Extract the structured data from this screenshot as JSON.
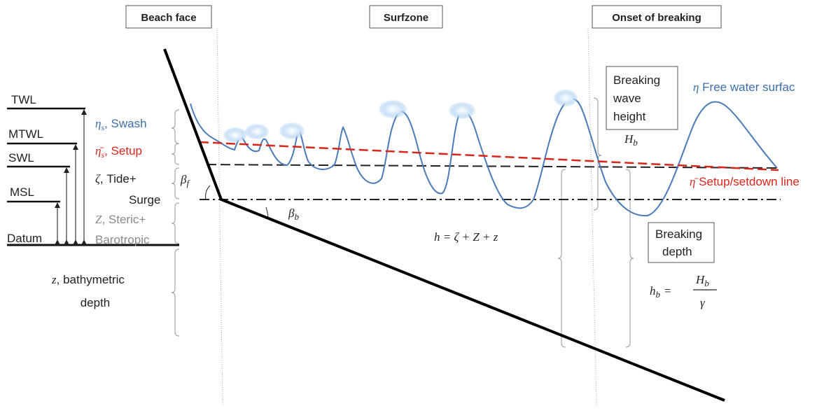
{
  "zones": [
    "Beach face",
    "Surfzone",
    "Onset of breaking"
  ],
  "levels": [
    "TWL",
    "MTWL",
    "SWL",
    "MSL",
    "Datum"
  ],
  "components": {
    "swash": {
      "symbol": "η",
      "sub": "s",
      "text": ", Swash"
    },
    "setup": {
      "symbol": "η̄",
      "sub": "s",
      "text": ",  Setup"
    },
    "tide": {
      "symbol": "ζ",
      "text": ",   Tide+",
      "line2": "Surge"
    },
    "steric": {
      "symbol": "Z",
      "text": ", Steric+",
      "line2": "Barotropic"
    },
    "bathymetry": {
      "symbol": "z",
      "text": ", bathymetric",
      "line2": "depth"
    }
  },
  "angles": {
    "beach_face": {
      "symbol": "β",
      "sub": "f"
    },
    "bed": {
      "symbol": "β",
      "sub": "b"
    }
  },
  "breaking_wave_height": [
    "Breaking",
    "wave",
    "height"
  ],
  "breaking_height_symbol": {
    "symbol": "H",
    "sub": "b"
  },
  "free_surface": {
    "symbol": "η",
    "text": " Free water surfac"
  },
  "setup_line": {
    "symbol": "η̄",
    "text": " Setup/setdown line"
  },
  "breaking_depth": [
    "Breaking",
    "depth"
  ],
  "depth_equation": "h = ζ + Z + z",
  "breaking_depth_equation": {
    "lhs": "h",
    "lhs_sub": "b",
    "equals": "=",
    "numerator": "H",
    "numerator_sub": "b",
    "denominator": "γ"
  }
}
